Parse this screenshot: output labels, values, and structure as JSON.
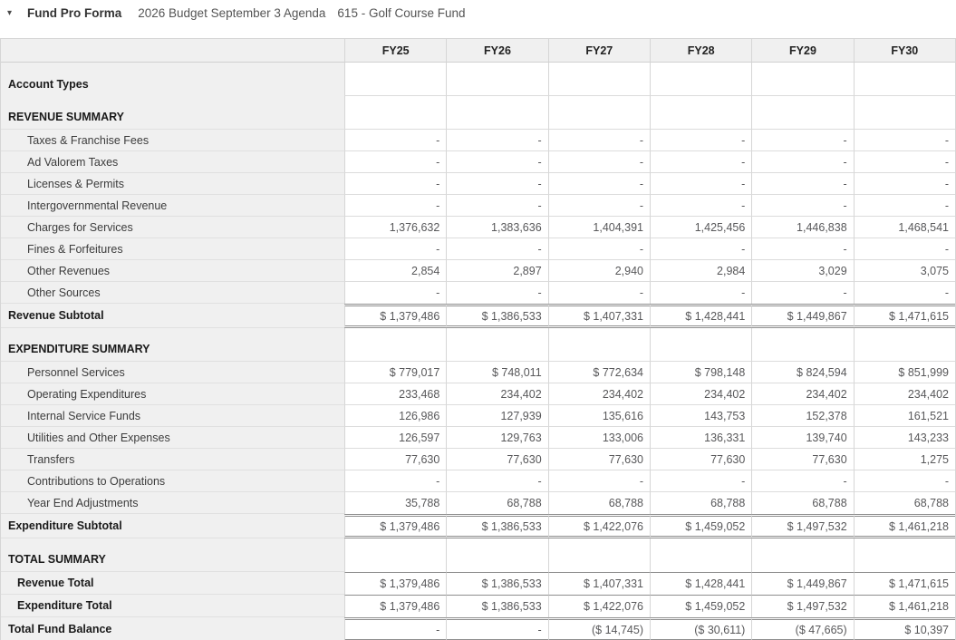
{
  "header": {
    "collapse_icon": "▾",
    "title": "Fund Pro Forma",
    "subtitle": "2026 Budget September 3 Agenda",
    "fund_name": "615 - Golf Course Fund"
  },
  "colors": {
    "panel_gray": "#f0f0f0",
    "light_border": "#dcdcdc",
    "heavy_border": "#8e8e8e",
    "label_text": "#3c3c3c",
    "number_text": "#58585a"
  },
  "table": {
    "columns": [
      "FY25",
      "FY26",
      "FY27",
      "FY28",
      "FY29",
      "FY30"
    ],
    "rows": [
      {
        "label": "Account Types",
        "style": "section",
        "values": [
          "",
          "",
          "",
          "",
          "",
          ""
        ]
      },
      {
        "label": "REVENUE SUMMARY",
        "style": "section",
        "values": [
          "",
          "",
          "",
          "",
          "",
          ""
        ]
      },
      {
        "label": "Taxes & Franchise Fees",
        "style": "item",
        "values": [
          "-",
          "-",
          "-",
          "-",
          "-",
          "-"
        ]
      },
      {
        "label": "Ad Valorem Taxes",
        "style": "item",
        "values": [
          "-",
          "-",
          "-",
          "-",
          "-",
          "-"
        ]
      },
      {
        "label": "Licenses & Permits",
        "style": "item",
        "values": [
          "-",
          "-",
          "-",
          "-",
          "-",
          "-"
        ]
      },
      {
        "label": "Intergovernmental Revenue",
        "style": "item",
        "values": [
          "-",
          "-",
          "-",
          "-",
          "-",
          "-"
        ]
      },
      {
        "label": "Charges for Services",
        "style": "item",
        "values": [
          "1,376,632",
          "1,383,636",
          "1,404,391",
          "1,425,456",
          "1,446,838",
          "1,468,541"
        ]
      },
      {
        "label": "Fines & Forfeitures",
        "style": "item",
        "values": [
          "-",
          "-",
          "-",
          "-",
          "-",
          "-"
        ]
      },
      {
        "label": "Other Revenues",
        "style": "item",
        "values": [
          "2,854",
          "2,897",
          "2,940",
          "2,984",
          "3,029",
          "3,075"
        ]
      },
      {
        "label": "Other Sources",
        "style": "item",
        "values": [
          "-",
          "-",
          "-",
          "-",
          "-",
          "-"
        ]
      },
      {
        "label": "Revenue Subtotal",
        "style": "subtotal",
        "values": [
          "$ 1,379,486",
          "$ 1,386,533",
          "$ 1,407,331",
          "$ 1,428,441",
          "$ 1,449,867",
          "$ 1,471,615"
        ]
      },
      {
        "label": "EXPENDITURE SUMMARY",
        "style": "section",
        "values": [
          "",
          "",
          "",
          "",
          "",
          ""
        ]
      },
      {
        "label": "Personnel Services",
        "style": "item",
        "values": [
          "$ 779,017",
          "$ 748,011",
          "$ 772,634",
          "$ 798,148",
          "$ 824,594",
          "$ 851,999"
        ]
      },
      {
        "label": "Operating Expenditures",
        "style": "item",
        "values": [
          "233,468",
          "234,402",
          "234,402",
          "234,402",
          "234,402",
          "234,402"
        ]
      },
      {
        "label": "Internal Service Funds",
        "style": "item",
        "values": [
          "126,986",
          "127,939",
          "135,616",
          "143,753",
          "152,378",
          "161,521"
        ]
      },
      {
        "label": "Utilities and Other Expenses",
        "style": "item",
        "values": [
          "126,597",
          "129,763",
          "133,006",
          "136,331",
          "139,740",
          "143,233"
        ]
      },
      {
        "label": "Transfers",
        "style": "item",
        "values": [
          "77,630",
          "77,630",
          "77,630",
          "77,630",
          "77,630",
          "1,275"
        ]
      },
      {
        "label": "Contributions to Operations",
        "style": "item",
        "values": [
          "-",
          "-",
          "-",
          "-",
          "-",
          "-"
        ]
      },
      {
        "label": "Year End Adjustments",
        "style": "item",
        "values": [
          "35,788",
          "68,788",
          "68,788",
          "68,788",
          "68,788",
          "68,788"
        ]
      },
      {
        "label": "Expenditure Subtotal",
        "style": "subtotal",
        "values": [
          "$ 1,379,486",
          "$ 1,386,533",
          "$ 1,422,076",
          "$ 1,459,052",
          "$ 1,497,532",
          "$ 1,461,218"
        ]
      },
      {
        "label": "TOTAL SUMMARY",
        "style": "section",
        "values": [
          "",
          "",
          "",
          "",
          "",
          ""
        ]
      },
      {
        "label": "Revenue Total",
        "style": "total-item",
        "values": [
          "$ 1,379,486",
          "$ 1,386,533",
          "$ 1,407,331",
          "$ 1,428,441",
          "$ 1,449,867",
          "$ 1,471,615"
        ]
      },
      {
        "label": "Expenditure Total",
        "style": "total-item",
        "values": [
          "$ 1,379,486",
          "$ 1,386,533",
          "$ 1,422,076",
          "$ 1,459,052",
          "$ 1,497,532",
          "$ 1,461,218"
        ]
      },
      {
        "label": "Total Fund Balance",
        "style": "grand",
        "values": [
          "-",
          "-",
          "($ 14,745)",
          "($ 30,611)",
          "($ 47,665)",
          "$ 10,397"
        ]
      }
    ]
  }
}
